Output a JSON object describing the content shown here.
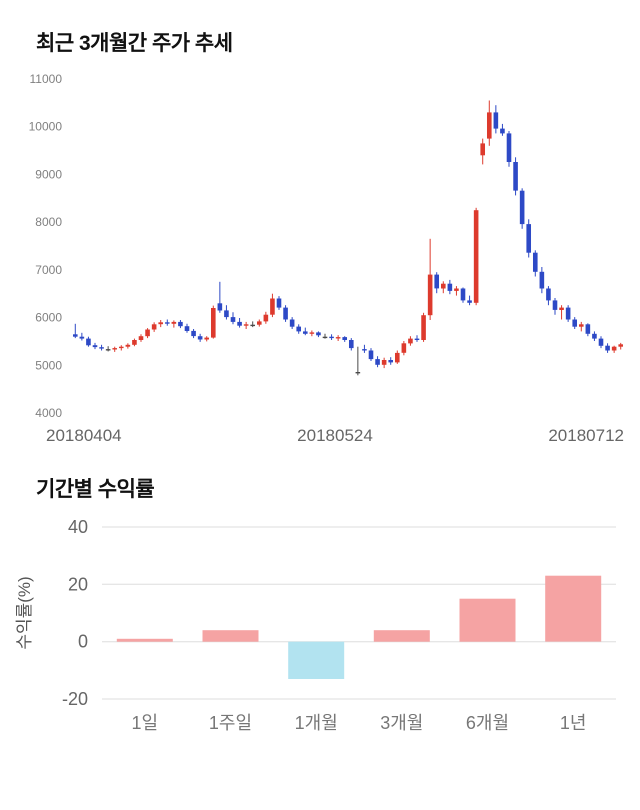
{
  "price_section": {
    "title": "최근 3개월간 주가 추세"
  },
  "returns_section": {
    "title": "기간별 수익률"
  },
  "colors": {
    "candle_up": "#dd3a2d",
    "candle_down": "#2d49c6",
    "candle_doji": "#4a4a4a",
    "bar_positive": "#f5a3a3",
    "bar_negative": "#b2e3f0",
    "gridline": "#dedede"
  },
  "chart_data": [
    {
      "type": "candlestick",
      "title": "최근 3개월간 주가 추세",
      "ylim": [
        4000,
        11000
      ],
      "yticks": [
        4000,
        5000,
        6000,
        7000,
        8000,
        9000,
        10000,
        11000
      ],
      "x_axis_labels": [
        "20180404",
        "20180524",
        "20180712"
      ],
      "grid": false,
      "candles": [
        [
          5650,
          5870,
          5570,
          5600
        ],
        [
          5600,
          5680,
          5520,
          5560
        ],
        [
          5560,
          5600,
          5390,
          5420
        ],
        [
          5420,
          5470,
          5340,
          5380
        ],
        [
          5380,
          5430,
          5310,
          5350
        ],
        [
          5340,
          5400,
          5290,
          5340
        ],
        [
          5340,
          5390,
          5280,
          5360
        ],
        [
          5360,
          5420,
          5310,
          5390
        ],
        [
          5390,
          5460,
          5350,
          5430
        ],
        [
          5430,
          5560,
          5400,
          5530
        ],
        [
          5530,
          5650,
          5490,
          5610
        ],
        [
          5610,
          5780,
          5570,
          5750
        ],
        [
          5750,
          5900,
          5700,
          5860
        ],
        [
          5860,
          5950,
          5800,
          5900
        ],
        [
          5900,
          5960,
          5830,
          5870
        ],
        [
          5870,
          5940,
          5790,
          5910
        ],
        [
          5910,
          5950,
          5780,
          5820
        ],
        [
          5820,
          5870,
          5680,
          5720
        ],
        [
          5720,
          5760,
          5570,
          5610
        ],
        [
          5610,
          5660,
          5490,
          5540
        ],
        [
          5540,
          5610,
          5500,
          5580
        ],
        [
          5580,
          6250,
          5560,
          6200
        ],
        [
          6300,
          6750,
          6100,
          6150
        ],
        [
          6150,
          6260,
          5960,
          6010
        ],
        [
          6010,
          6110,
          5860,
          5910
        ],
        [
          5910,
          5990,
          5790,
          5830
        ],
        [
          5830,
          5910,
          5760,
          5860
        ],
        [
          5850,
          5920,
          5800,
          5850
        ],
        [
          5850,
          5960,
          5810,
          5920
        ],
        [
          5920,
          6120,
          5870,
          6060
        ],
        [
          6060,
          6500,
          6010,
          6400
        ],
        [
          6400,
          6450,
          6160,
          6210
        ],
        [
          6210,
          6260,
          5910,
          5960
        ],
        [
          5960,
          6010,
          5760,
          5810
        ],
        [
          5810,
          5860,
          5660,
          5710
        ],
        [
          5710,
          5790,
          5630,
          5660
        ],
        [
          5660,
          5730,
          5610,
          5690
        ],
        [
          5690,
          5710,
          5590,
          5630
        ],
        [
          5600,
          5660,
          5560,
          5600
        ],
        [
          5600,
          5650,
          5530,
          5570
        ],
        [
          5570,
          5630,
          5510,
          5590
        ],
        [
          5590,
          5610,
          5490,
          5530
        ],
        [
          5530,
          5570,
          5310,
          5360
        ],
        [
          4860,
          5390,
          4790,
          4860
        ],
        [
          5340,
          5430,
          5260,
          5310
        ],
        [
          5310,
          5360,
          5090,
          5130
        ],
        [
          5130,
          5190,
          4960,
          5010
        ],
        [
          5010,
          5160,
          4940,
          5110
        ],
        [
          5110,
          5170,
          5010,
          5060
        ],
        [
          5060,
          5310,
          5030,
          5260
        ],
        [
          5260,
          5510,
          5210,
          5460
        ],
        [
          5460,
          5610,
          5410,
          5560
        ],
        [
          5560,
          5630,
          5490,
          5530
        ],
        [
          5530,
          6100,
          5490,
          6050
        ],
        [
          6050,
          7650,
          5950,
          6900
        ],
        [
          6900,
          6950,
          6510,
          6610
        ],
        [
          6610,
          6760,
          6510,
          6710
        ],
        [
          6710,
          6790,
          6490,
          6560
        ],
        [
          6560,
          6660,
          6460,
          6610
        ],
        [
          6610,
          6630,
          6310,
          6360
        ],
        [
          6360,
          6460,
          6260,
          6310
        ],
        [
          6310,
          8300,
          6260,
          8250
        ],
        [
          9400,
          9750,
          9210,
          9650
        ],
        [
          9750,
          10550,
          9600,
          10300
        ],
        [
          10300,
          10450,
          9860,
          9960
        ],
        [
          9960,
          10060,
          9810,
          9860
        ],
        [
          9860,
          9910,
          9160,
          9260
        ],
        [
          9260,
          9360,
          8560,
          8660
        ],
        [
          8660,
          8710,
          7860,
          7960
        ],
        [
          7960,
          8060,
          7260,
          7360
        ],
        [
          7360,
          7410,
          6860,
          6960
        ],
        [
          6960,
          7060,
          6510,
          6610
        ],
        [
          6610,
          6660,
          6260,
          6360
        ],
        [
          6360,
          6410,
          6060,
          6160
        ],
        [
          6160,
          6260,
          5960,
          6210
        ],
        [
          6210,
          6260,
          5910,
          5960
        ],
        [
          5960,
          6010,
          5760,
          5810
        ],
        [
          5810,
          5910,
          5710,
          5860
        ],
        [
          5860,
          5880,
          5610,
          5660
        ],
        [
          5660,
          5710,
          5510,
          5560
        ],
        [
          5560,
          5610,
          5360,
          5410
        ],
        [
          5410,
          5460,
          5260,
          5310
        ],
        [
          5310,
          5410,
          5260,
          5390
        ],
        [
          5390,
          5470,
          5330,
          5440
        ]
      ]
    },
    {
      "type": "bar",
      "title": "기간별 수익률",
      "categories": [
        "1일",
        "1주일",
        "1개월",
        "3개월",
        "6개월",
        "1년"
      ],
      "values": [
        1,
        4,
        -13,
        4,
        15,
        23
      ],
      "ylabel": "수익률(%)",
      "ylim": [
        -20,
        40
      ],
      "yticks": [
        40,
        20,
        0,
        -20
      ],
      "grid": true,
      "legend": "none"
    }
  ]
}
